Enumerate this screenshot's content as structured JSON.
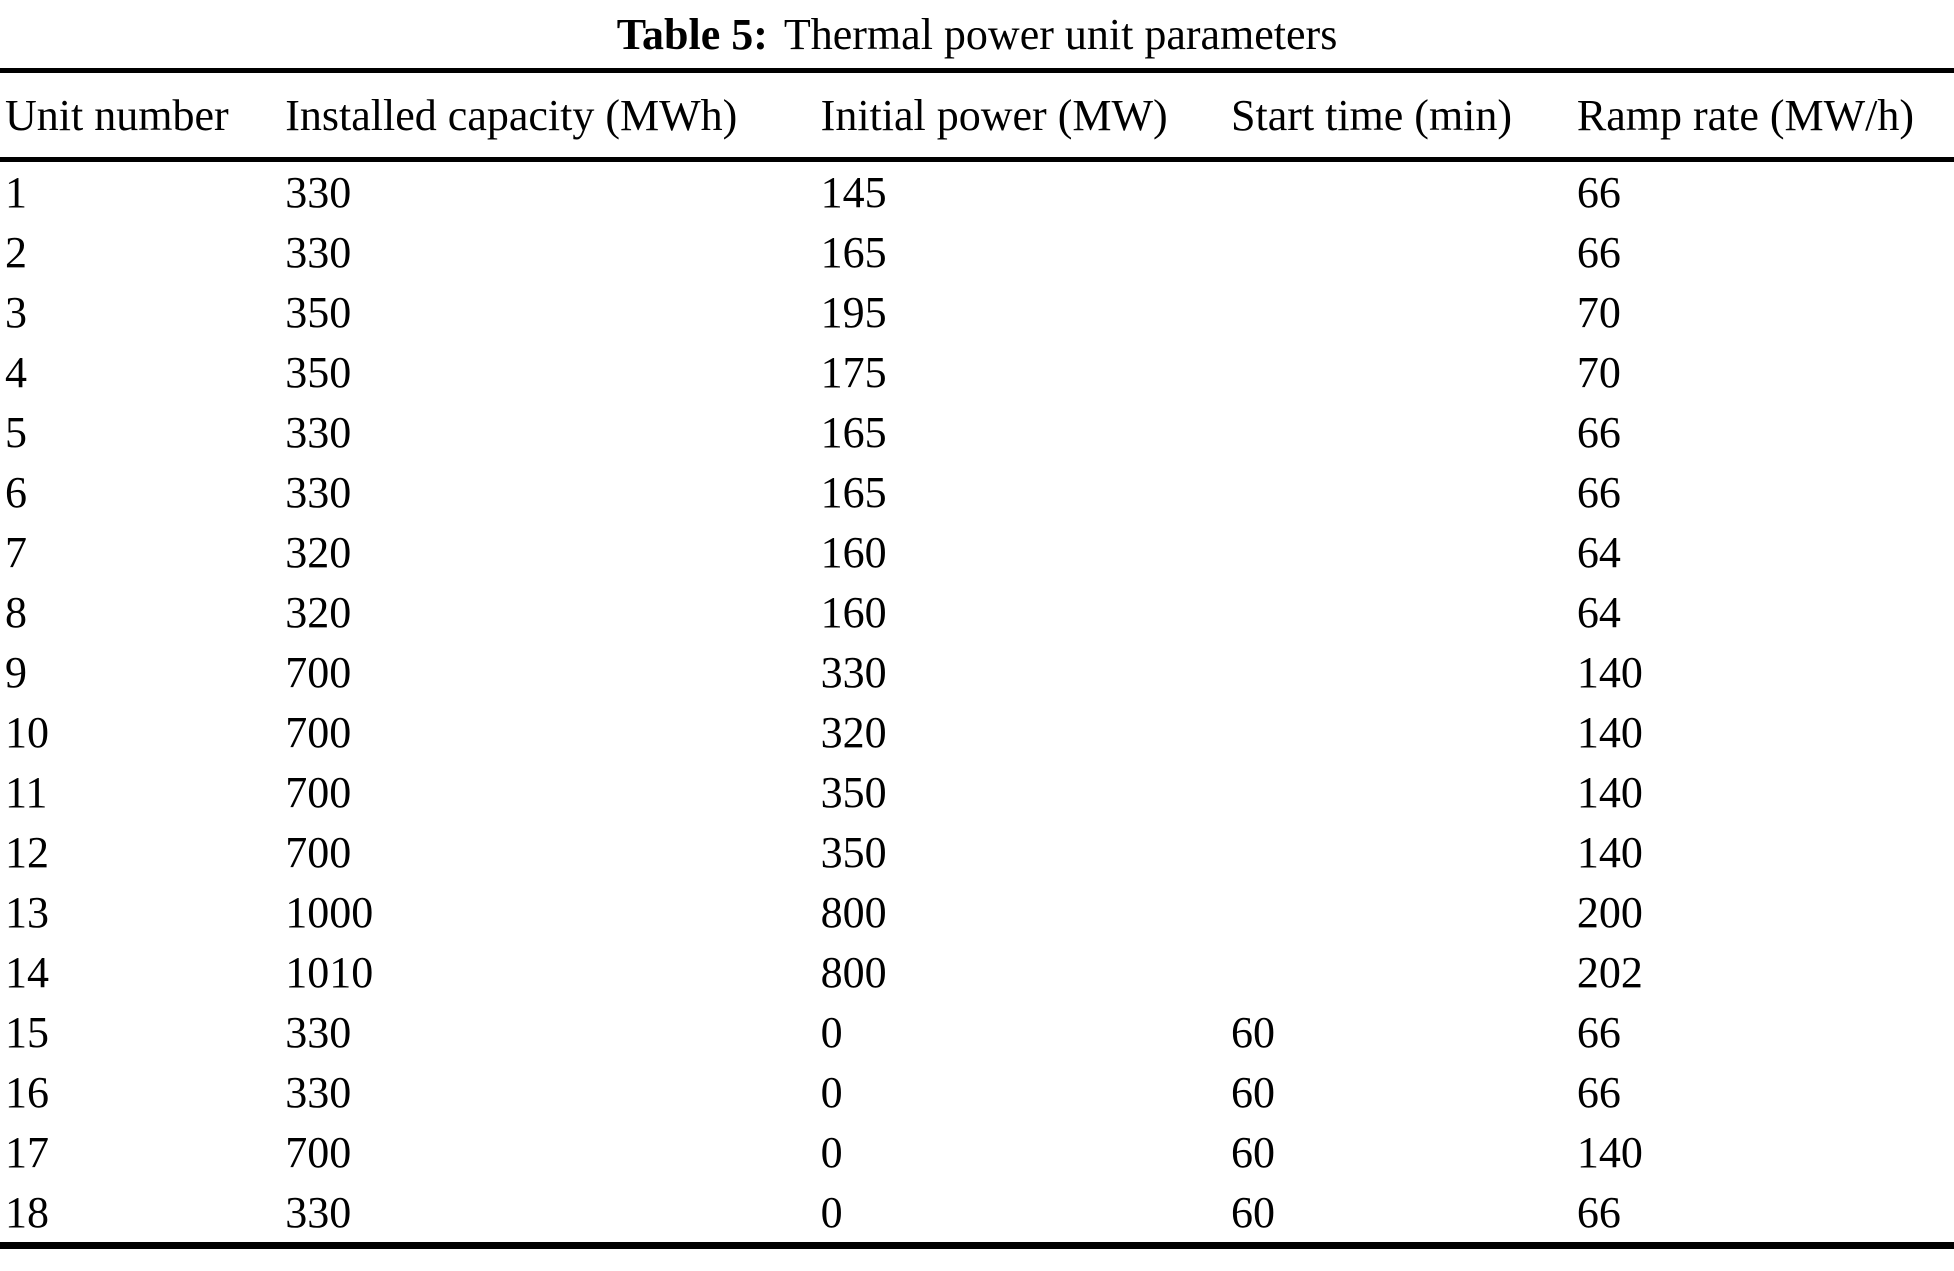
{
  "caption": {
    "label": "Table 5:",
    "text": "Thermal power unit parameters"
  },
  "table": {
    "columns": [
      "Unit number",
      "Installed capacity (MWh)",
      "Initial power (MW)",
      "Start time (min)",
      "Ramp rate (MW/h)"
    ],
    "rows": [
      [
        "1",
        "330",
        "145",
        "",
        "66"
      ],
      [
        "2",
        "330",
        "165",
        "",
        "66"
      ],
      [
        "3",
        "350",
        "195",
        "",
        "70"
      ],
      [
        "4",
        "350",
        "175",
        "",
        "70"
      ],
      [
        "5",
        "330",
        "165",
        "",
        "66"
      ],
      [
        "6",
        "330",
        "165",
        "",
        "66"
      ],
      [
        "7",
        "320",
        "160",
        "",
        "64"
      ],
      [
        "8",
        "320",
        "160",
        "",
        "64"
      ],
      [
        "9",
        "700",
        "330",
        "",
        "140"
      ],
      [
        "10",
        "700",
        "320",
        "",
        "140"
      ],
      [
        "11",
        "700",
        "350",
        "",
        "140"
      ],
      [
        "12",
        "700",
        "350",
        "",
        "140"
      ],
      [
        "13",
        "1000",
        "800",
        "",
        "200"
      ],
      [
        "14",
        "1010",
        "800",
        "",
        "202"
      ],
      [
        "15",
        "330",
        "0",
        "60",
        "66"
      ],
      [
        "16",
        "330",
        "0",
        "60",
        "66"
      ],
      [
        "17",
        "700",
        "0",
        "60",
        "140"
      ],
      [
        "18",
        "330",
        "0",
        "60",
        "66"
      ]
    ]
  }
}
